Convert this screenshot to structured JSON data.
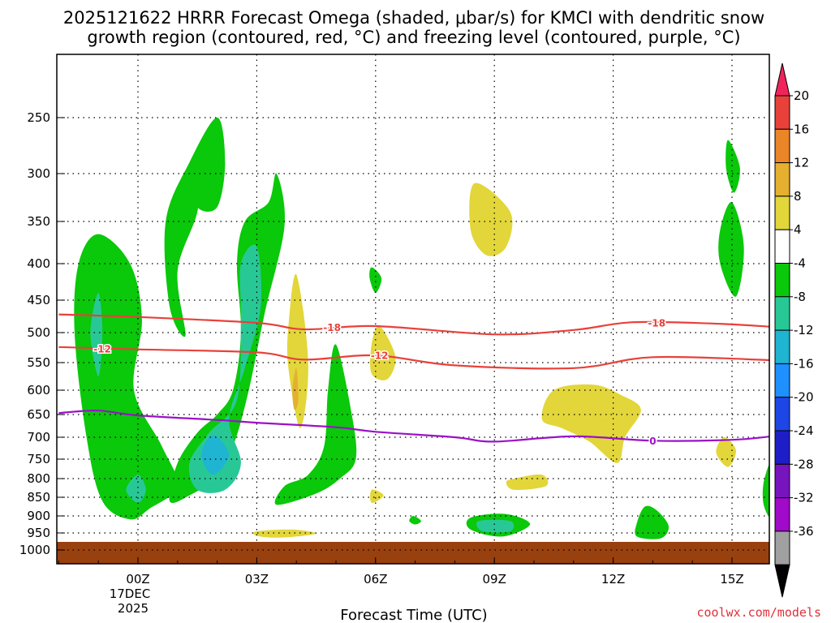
{
  "chart_data": {
    "type": "contour",
    "title_line1": "2025121622 HRRR Forecast Omega (shaded, μbar/s) for KMCI with dendritic snow",
    "title_line2": "growth region (contoured, red, °C) and freezing level (contoured, purple, °C)",
    "xlabel": "Forecast Time (UTC)",
    "x_ticks": [
      {
        "hour": 0,
        "label": "00Z"
      },
      {
        "hour": 3,
        "label": "03Z"
      },
      {
        "hour": 6,
        "label": "06Z"
      },
      {
        "hour": 9,
        "label": "09Z"
      },
      {
        "hour": 12,
        "label": "12Z"
      },
      {
        "hour": 15,
        "label": "15Z"
      }
    ],
    "x_date_line1": "17DEC",
    "x_date_line2": "2025",
    "xlim_hours": [
      -2,
      16
    ],
    "y_ticks": [
      250,
      300,
      350,
      400,
      450,
      500,
      550,
      600,
      650,
      700,
      750,
      800,
      850,
      900,
      950,
      1000
    ],
    "ylim_hpa": [
      1025,
      200
    ],
    "surface_hpa": 975,
    "colorbar": {
      "levels": [
        20,
        16,
        12,
        8,
        4,
        -4,
        -8,
        -12,
        -16,
        -20,
        -24,
        -28,
        -32,
        -36
      ],
      "colors": [
        "#f0245a",
        "#e8413a",
        "#ea8528",
        "#e5b030",
        "#e2d63a",
        "#ffffff",
        "#0ac80a",
        "#28c896",
        "#1eb4d2",
        "#1e90ff",
        "#1e46e6",
        "#1e1ec8",
        "#7814be",
        "#a00ac8",
        "#a0a0a0",
        "#000000"
      ]
    },
    "contours": [
      {
        "name": "dendritic -18",
        "label": "-18",
        "color": "#e8413a",
        "points": [
          [
            -2,
            472
          ],
          [
            0,
            476
          ],
          [
            3,
            485
          ],
          [
            4.2,
            495
          ],
          [
            6,
            490
          ],
          [
            9,
            503
          ],
          [
            11,
            496
          ],
          [
            12.5,
            484
          ],
          [
            14.5,
            486
          ],
          [
            16,
            491
          ]
        ]
      },
      {
        "name": "dendritic -12",
        "label": "-12",
        "color": "#e8413a",
        "points": [
          [
            -2,
            524
          ],
          [
            0,
            528
          ],
          [
            3,
            533
          ],
          [
            4.2,
            545
          ],
          [
            6,
            538
          ],
          [
            8,
            555
          ],
          [
            11,
            560
          ],
          [
            13,
            541
          ],
          [
            16,
            546
          ]
        ]
      },
      {
        "name": "freezing 0",
        "label": "0",
        "color": "#9a12c8",
        "points": [
          [
            -2,
            647
          ],
          [
            -1,
            642
          ],
          [
            0,
            652
          ],
          [
            2,
            662
          ],
          [
            3,
            668
          ],
          [
            5,
            678
          ],
          [
            6,
            688
          ],
          [
            8,
            700
          ],
          [
            9,
            710
          ],
          [
            11,
            698
          ],
          [
            13,
            708
          ],
          [
            15,
            706
          ],
          [
            16,
            698
          ]
        ]
      }
    ],
    "contour_labels": [
      {
        "text": "-18",
        "hour": 4.9,
        "hpa": 492
      },
      {
        "text": "-18",
        "hour": 13.1,
        "hpa": 485
      },
      {
        "text": "-12",
        "hour": -0.9,
        "hpa": 527
      },
      {
        "text": "-12",
        "hour": 6.1,
        "hpa": 538
      },
      {
        "text": "0",
        "hour": 13.0,
        "hpa": 708
      }
    ],
    "omega_regions": [
      {
        "level": -4,
        "color": "#0ac80a",
        "points": [
          [
            -1,
            365
          ],
          [
            -0.2,
            400
          ],
          [
            0.1,
            480
          ],
          [
            -0.1,
            600
          ],
          [
            0.6,
            720
          ],
          [
            1,
            820
          ],
          [
            0.3,
            880
          ],
          [
            -0.2,
            910
          ],
          [
            -0.9,
            860
          ],
          [
            -1.3,
            700
          ],
          [
            -1.6,
            500
          ],
          [
            -1.5,
            400
          ]
        ]
      },
      {
        "level": -8,
        "color": "#28c896",
        "points": [
          [
            -1,
            440
          ],
          [
            -0.9,
            500
          ],
          [
            -1,
            575
          ],
          [
            -1.2,
            500
          ]
        ]
      },
      {
        "level": -8,
        "color": "#28c896",
        "points": [
          [
            0,
            790
          ],
          [
            0.2,
            830
          ],
          [
            0,
            865
          ],
          [
            -0.3,
            830
          ]
        ]
      },
      {
        "level": -4,
        "color": "#0ac80a",
        "points": [
          [
            2,
            250
          ],
          [
            2.2,
            290
          ],
          [
            2,
            335
          ],
          [
            1.5,
            335
          ],
          [
            1.5,
            305
          ],
          [
            1.5,
            300
          ],
          [
            1.5,
            340
          ],
          [
            1,
            410
          ],
          [
            1.2,
            505
          ],
          [
            0.8,
            460
          ],
          [
            0.7,
            350
          ],
          [
            1.3,
            290
          ]
        ]
      },
      {
        "level": -4,
        "color": "#0ac80a",
        "points": [
          [
            3.5,
            300
          ],
          [
            3.7,
            355
          ],
          [
            3.2,
            470
          ],
          [
            2.8,
            600
          ],
          [
            2.4,
            720
          ],
          [
            1.9,
            800
          ],
          [
            1.3,
            845
          ],
          [
            0.8,
            860
          ],
          [
            1,
            760
          ],
          [
            1.5,
            690
          ],
          [
            2,
            650
          ],
          [
            2.4,
            600
          ],
          [
            2.6,
            500
          ],
          [
            2.5,
            400
          ],
          [
            2.7,
            350
          ],
          [
            3.3,
            330
          ]
        ]
      },
      {
        "level": -8,
        "color": "#28c896",
        "points": [
          [
            3,
            380
          ],
          [
            3.1,
            460
          ],
          [
            2.7,
            560
          ],
          [
            2.3,
            660
          ],
          [
            2.6,
            760
          ],
          [
            2.2,
            830
          ],
          [
            1.5,
            830
          ],
          [
            1.3,
            760
          ],
          [
            1.8,
            690
          ],
          [
            2.5,
            620
          ],
          [
            2.6,
            480
          ],
          [
            2.6,
            400
          ]
        ]
      },
      {
        "level": -12,
        "color": "#1eb4d2",
        "points": [
          [
            1.9,
            695
          ],
          [
            2.3,
            740
          ],
          [
            1.9,
            790
          ],
          [
            1.6,
            740
          ]
        ]
      },
      {
        "level": -4,
        "color": "#0ac80a",
        "points": [
          [
            5,
            520
          ],
          [
            5.4,
            650
          ],
          [
            5.5,
            750
          ],
          [
            5.1,
            800
          ],
          [
            4.5,
            840
          ],
          [
            3.5,
            870
          ],
          [
            3.7,
            820
          ],
          [
            4.3,
            790
          ],
          [
            4.7,
            720
          ],
          [
            4.8,
            600
          ]
        ]
      },
      {
        "level": 4,
        "color": "#e2d63a",
        "points": [
          [
            4,
            415
          ],
          [
            4.3,
            550
          ],
          [
            4.1,
            680
          ],
          [
            3.8,
            560
          ],
          [
            3.8,
            490
          ]
        ]
      },
      {
        "level": 8,
        "color": "#e5b030",
        "points": [
          [
            4,
            560
          ],
          [
            4.05,
            620
          ],
          [
            3.95,
            640
          ],
          [
            3.9,
            600
          ]
        ]
      },
      {
        "level": 4,
        "color": "#e2d63a",
        "points": [
          [
            6.1,
            490
          ],
          [
            6.5,
            540
          ],
          [
            6.3,
            580
          ],
          [
            5.9,
            570
          ],
          [
            5.9,
            520
          ]
        ]
      },
      {
        "level": 4,
        "color": "#e2d63a",
        "points": [
          [
            8.5,
            310
          ],
          [
            9.4,
            340
          ],
          [
            9.3,
            380
          ],
          [
            8.8,
            390
          ],
          [
            8.4,
            360
          ]
        ]
      },
      {
        "level": 4,
        "color": "#e2d63a",
        "points": [
          [
            10.5,
            600
          ],
          [
            11.5,
            590
          ],
          [
            12.2,
            610
          ],
          [
            12.7,
            640
          ],
          [
            12.3,
            700
          ],
          [
            12.1,
            760
          ],
          [
            11.4,
            710
          ],
          [
            10.7,
            680
          ],
          [
            10.2,
            660
          ]
        ]
      },
      {
        "level": 4,
        "color": "#e2d63a",
        "points": [
          [
            9.5,
            800
          ],
          [
            10.2,
            790
          ],
          [
            10.3,
            820
          ],
          [
            9.5,
            830
          ],
          [
            9.3,
            810
          ]
        ]
      },
      {
        "level": 4,
        "color": "#e2d63a",
        "points": [
          [
            3,
            945
          ],
          [
            3.9,
            940
          ],
          [
            4.5,
            952
          ],
          [
            3.6,
            963
          ],
          [
            3,
            958
          ]
        ]
      },
      {
        "level": 4,
        "color": "#e2d63a",
        "points": [
          [
            5.9,
            830
          ],
          [
            6.2,
            845
          ],
          [
            5.9,
            865
          ]
        ]
      },
      {
        "level": 4,
        "color": "#e2d63a",
        "points": [
          [
            14.8,
            700
          ],
          [
            15.1,
            730
          ],
          [
            14.9,
            770
          ],
          [
            14.6,
            735
          ]
        ]
      },
      {
        "level": -4,
        "color": "#0ac80a",
        "points": [
          [
            5.9,
            405
          ],
          [
            6.15,
            420
          ],
          [
            6,
            440
          ],
          [
            5.85,
            420
          ]
        ]
      },
      {
        "level": -4,
        "color": "#0ac80a",
        "points": [
          [
            6.95,
            900
          ],
          [
            7.15,
            915
          ],
          [
            7,
            925
          ],
          [
            6.85,
            915
          ]
        ]
      },
      {
        "level": -4,
        "color": "#0ac80a",
        "points": [
          [
            8.4,
            905
          ],
          [
            9.3,
            895
          ],
          [
            9.9,
            925
          ],
          [
            9.2,
            960
          ],
          [
            8.4,
            940
          ]
        ]
      },
      {
        "level": -8,
        "color": "#28c896",
        "points": [
          [
            8.6,
            915
          ],
          [
            9.4,
            915
          ],
          [
            9.4,
            945
          ],
          [
            8.7,
            945
          ]
        ]
      },
      {
        "level": -4,
        "color": "#0ac80a",
        "points": [
          [
            12.8,
            875
          ],
          [
            13.1,
            885
          ],
          [
            13.4,
            930
          ],
          [
            13.2,
            965
          ],
          [
            12.6,
            960
          ],
          [
            12.6,
            920
          ]
        ]
      },
      {
        "level": -4,
        "color": "#0ac80a",
        "points": [
          [
            14.9,
            270
          ],
          [
            15.2,
            295
          ],
          [
            15.05,
            320
          ],
          [
            14.85,
            295
          ]
        ]
      },
      {
        "level": -4,
        "color": "#0ac80a",
        "points": [
          [
            15,
            330
          ],
          [
            15.3,
            380
          ],
          [
            15.1,
            445
          ],
          [
            14.7,
            400
          ],
          [
            14.7,
            360
          ]
        ]
      },
      {
        "level": -4,
        "color": "#0ac80a",
        "points": [
          [
            16,
            760
          ],
          [
            16,
            900
          ],
          [
            15.8,
            870
          ],
          [
            15.8,
            810
          ]
        ]
      }
    ]
  },
  "credit": "coolwx.com/models"
}
